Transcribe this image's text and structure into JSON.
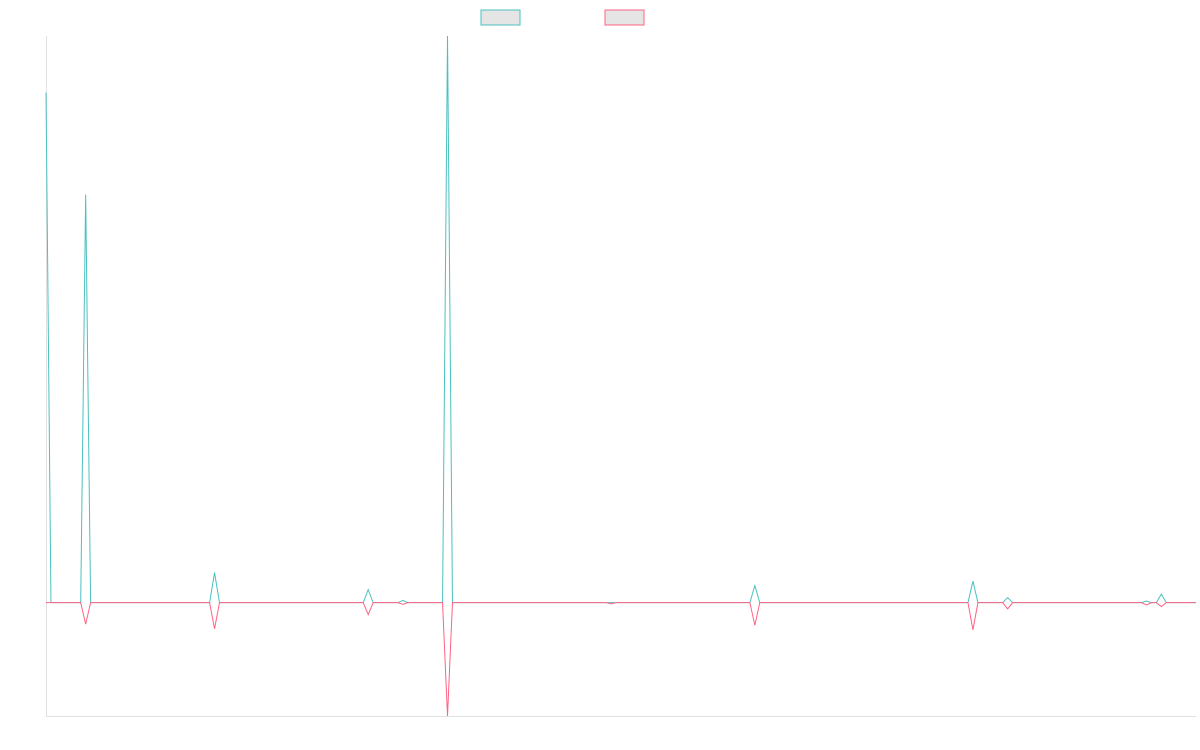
{
  "legend": {
    "items": [
      {
        "label": "",
        "stroke": "#4bc0c0",
        "fill": "#e5e5e5"
      },
      {
        "label": "",
        "stroke": "#ff6384",
        "fill": "#e5e5e5"
      }
    ]
  },
  "chart_data": {
    "type": "line",
    "title": "",
    "xlabel": "",
    "ylabel": "",
    "grid": false,
    "legend_position": "top",
    "x": [
      0,
      1,
      2,
      3,
      4,
      5,
      6,
      7,
      8,
      9,
      10,
      11,
      12,
      13,
      14,
      15,
      16,
      17,
      18,
      19,
      20,
      21,
      22,
      23,
      24,
      25,
      26,
      27,
      28,
      29,
      30,
      31,
      32,
      33,
      34,
      35,
      36,
      37,
      38,
      39,
      40,
      41,
      42,
      43,
      44,
      45,
      46,
      47,
      48,
      49,
      50,
      51,
      52,
      53,
      54,
      55,
      56,
      57,
      58,
      59,
      60,
      61,
      62,
      63,
      64,
      65,
      66,
      67,
      68,
      69,
      70,
      71,
      72,
      73,
      74,
      75,
      76,
      77,
      78,
      79,
      80,
      81,
      82,
      83,
      84,
      85,
      86,
      87,
      88,
      89,
      90,
      91,
      92,
      93,
      94,
      95,
      96,
      97,
      98,
      99,
      100,
      101,
      102,
      103,
      104,
      105,
      106,
      107,
      108,
      109,
      110,
      111,
      112,
      113,
      114,
      115,
      116,
      117,
      118,
      119,
      120,
      121,
      122,
      123,
      124,
      125,
      126,
      127,
      128,
      129,
      130,
      131,
      132,
      133,
      134,
      135,
      136,
      137,
      138,
      139,
      140,
      141,
      142,
      143,
      144,
      145,
      146,
      147,
      148,
      149,
      150,
      151,
      152,
      153,
      154,
      155,
      156,
      157,
      158,
      159,
      160,
      161,
      162,
      163,
      164,
      165,
      166,
      167,
      168,
      169,
      170,
      171,
      172,
      173,
      174,
      175,
      176,
      177,
      178,
      179,
      180,
      181,
      182,
      183,
      184,
      185,
      186,
      187,
      188,
      189,
      190,
      191,
      192,
      193,
      194,
      195,
      196,
      197,
      198,
      199,
      200,
      201,
      202,
      203,
      204,
      205,
      206,
      207,
      208,
      209,
      210,
      211,
      212,
      213,
      214,
      215,
      216,
      217,
      218,
      219,
      220,
      221,
      222,
      223,
      224,
      225,
      226,
      227,
      228,
      229,
      230,
      231,
      232
    ],
    "xlim": [
      0,
      232
    ],
    "ylim": [
      -20,
      100
    ],
    "series": [
      {
        "color": "#4bc0c0",
        "points": [
          [
            0,
            90
          ],
          [
            1,
            0
          ],
          [
            7,
            0
          ],
          [
            8,
            72
          ],
          [
            9,
            0
          ],
          [
            33,
            0
          ],
          [
            34,
            5.3
          ],
          [
            35,
            0
          ],
          [
            64,
            0
          ],
          [
            65,
            2.3
          ],
          [
            66,
            0
          ],
          [
            71,
            0
          ],
          [
            72,
            0.4
          ],
          [
            73,
            0
          ],
          [
            80,
            0
          ],
          [
            81,
            100
          ],
          [
            82,
            0
          ],
          [
            142,
            0
          ],
          [
            143,
            3
          ],
          [
            144,
            0
          ],
          [
            186,
            0
          ],
          [
            187,
            3.8
          ],
          [
            188,
            0
          ],
          [
            193,
            0
          ],
          [
            194,
            0.9
          ],
          [
            195,
            0
          ],
          [
            221,
            0
          ],
          [
            222,
            0.3
          ],
          [
            223,
            0
          ],
          [
            224,
            0
          ],
          [
            225,
            1.5
          ],
          [
            226,
            0
          ],
          [
            232,
            0
          ]
        ]
      },
      {
        "color": "#ff6384",
        "points": [
          [
            0,
            0
          ],
          [
            7,
            0
          ],
          [
            8,
            -3.8
          ],
          [
            9,
            0
          ],
          [
            33,
            0
          ],
          [
            34,
            -4.6
          ],
          [
            35,
            0
          ],
          [
            64,
            0
          ],
          [
            65,
            -2.1
          ],
          [
            66,
            0
          ],
          [
            71,
            0
          ],
          [
            72,
            -0.3
          ],
          [
            73,
            0
          ],
          [
            80,
            0
          ],
          [
            81,
            -20
          ],
          [
            82,
            0
          ],
          [
            113,
            0
          ],
          [
            114,
            -0.2
          ],
          [
            115,
            0
          ],
          [
            142,
            0
          ],
          [
            143,
            -4
          ],
          [
            144,
            0
          ],
          [
            186,
            0
          ],
          [
            187,
            -4.8
          ],
          [
            188,
            0
          ],
          [
            193,
            0
          ],
          [
            194,
            -1.1
          ],
          [
            195,
            0
          ],
          [
            221,
            0
          ],
          [
            222,
            -0.4
          ],
          [
            223,
            0
          ],
          [
            224,
            0
          ],
          [
            225,
            -0.7
          ],
          [
            226,
            0
          ],
          [
            232,
            0
          ]
        ]
      }
    ]
  }
}
